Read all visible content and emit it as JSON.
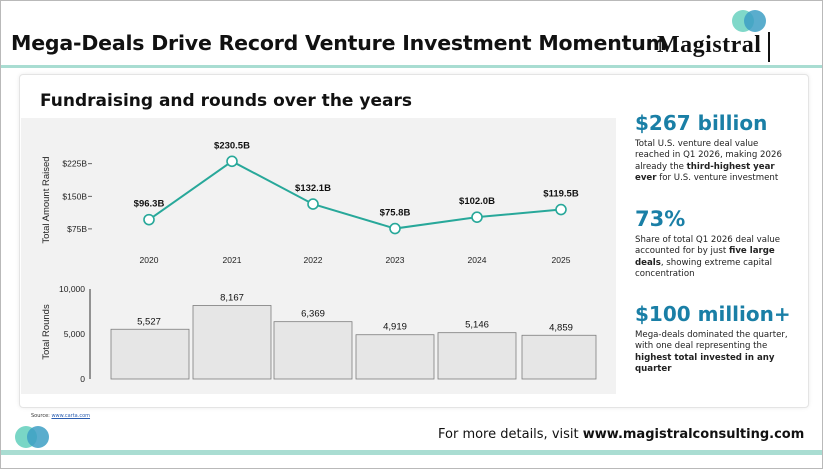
{
  "header": {
    "title": "Mega-Deals Drive Record Venture Investment Momentum",
    "brand": "Magistral"
  },
  "subtitle": "Fundraising and rounds over the years",
  "colors": {
    "accent": "#1a7fa6",
    "line": "#28a89a",
    "bar_fill": "#e6e6e6",
    "rule": "#a9ddd2"
  },
  "chart_data": [
    {
      "type": "line",
      "ylabel": "Total Amount Raised",
      "categories": [
        "2020",
        "2021",
        "2022",
        "2023",
        "2024",
        "2025"
      ],
      "values": [
        96.3,
        230.5,
        132.1,
        75.8,
        102.0,
        119.5
      ],
      "data_labels": [
        "$96.3B",
        "$230.5B",
        "$132.1B",
        "$75.8B",
        "$102.0B",
        "$119.5B"
      ],
      "yticks": [
        75,
        150,
        225
      ],
      "ytick_labels": [
        "$75B",
        "$150B",
        "$225B"
      ],
      "ylim": [
        40,
        260
      ],
      "grid": false
    },
    {
      "type": "bar",
      "ylabel": "Total Rounds",
      "categories": [
        "2020",
        "2021",
        "2022",
        "2023",
        "2024",
        "2025"
      ],
      "values": [
        5527,
        8167,
        6369,
        4919,
        5146,
        4859
      ],
      "data_labels": [
        "5,527",
        "8,167",
        "6,369",
        "4,919",
        "5,146",
        "4,859"
      ],
      "yticks": [
        0,
        5000,
        10000
      ],
      "ytick_labels": [
        "0",
        "5,000",
        "10,000"
      ],
      "ylim": [
        0,
        10000
      ],
      "grid": false
    }
  ],
  "stats": [
    {
      "value": "$267 billion",
      "parts": [
        {
          "text": "Total U.S. venture deal value reached in Q1 2026, making 2026 already the ",
          "bold": false
        },
        {
          "text": "third-highest year ever",
          "bold": true
        },
        {
          "text": " for U.S. venture investment",
          "bold": false
        }
      ]
    },
    {
      "value": "73%",
      "parts": [
        {
          "text": "Share of total Q1 2026 deal value accounted for by just ",
          "bold": false
        },
        {
          "text": "five large deals",
          "bold": true
        },
        {
          "text": ", showing extreme capital concentration",
          "bold": false
        }
      ]
    },
    {
      "value": "$100 million+",
      "parts": [
        {
          "text": "Mega-deals dominated the quarter, with one deal representing the ",
          "bold": false
        },
        {
          "text": "highest total invested in any quarter",
          "bold": true
        }
      ]
    }
  ],
  "source": {
    "label": "Source:",
    "link": "www.carta.com"
  },
  "footer": {
    "prefix": "For more details, visit ",
    "url": "www.magistralconsulting.com"
  }
}
